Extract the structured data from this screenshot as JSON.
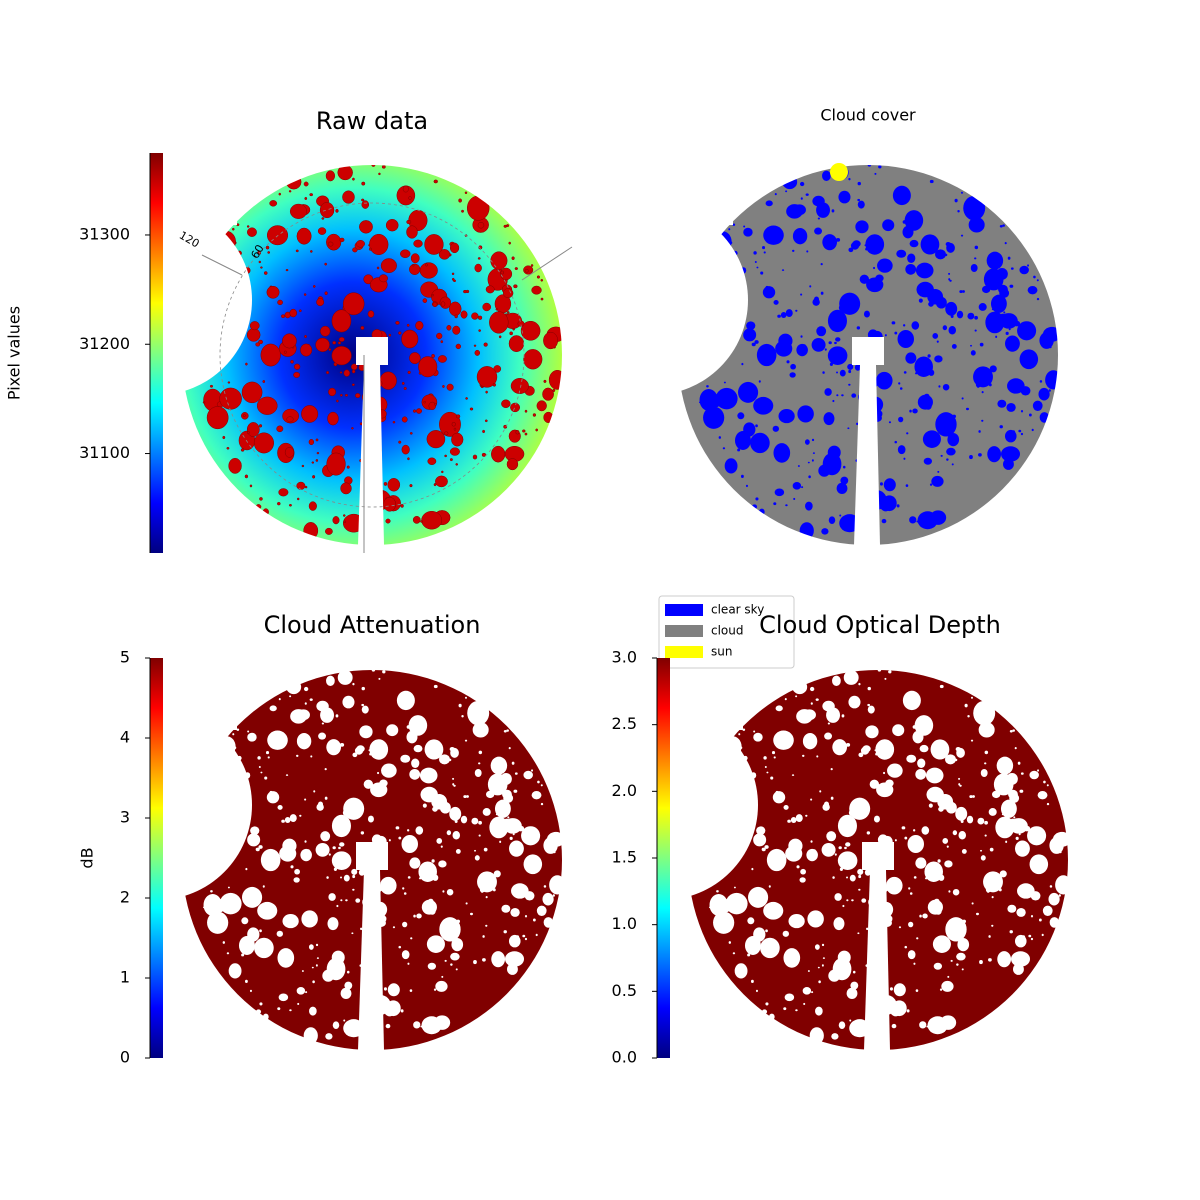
{
  "chart_data": [
    {
      "type": "image",
      "title": "Raw data",
      "polar_labels": [
        "120",
        "60"
      ],
      "colorbar": {
        "label": "Pixel values",
        "colormap": "jet",
        "ylim": [
          31009,
          31375
        ],
        "yticks": [
          31100,
          31200,
          31300
        ]
      }
    },
    {
      "type": "image",
      "title": "Cloud cover",
      "legend": [
        {
          "label": "clear sky",
          "color": "#0000ff"
        },
        {
          "label": "cloud",
          "color": "#808080"
        },
        {
          "label": "sun",
          "color": "#ffff00"
        }
      ]
    },
    {
      "type": "image",
      "title": "Cloud Attenuation",
      "colorbar": {
        "label": "dB",
        "colormap": "jet",
        "ylim": [
          0,
          5
        ],
        "yticks": [
          0,
          1,
          2,
          3,
          4,
          5
        ]
      }
    },
    {
      "type": "image",
      "title": "Cloud Optical Depth",
      "colorbar": {
        "colormap": "jet",
        "ylim": [
          0,
          3
        ],
        "yticks": [
          {
            "value": 0,
            "label": "0.0"
          },
          0.5,
          {
            "value": 1,
            "label": "1.0"
          },
          1.5,
          {
            "value": 2,
            "label": "2.0"
          },
          2.5,
          {
            "value": 3,
            "label": "3.0"
          }
        ]
      }
    }
  ]
}
